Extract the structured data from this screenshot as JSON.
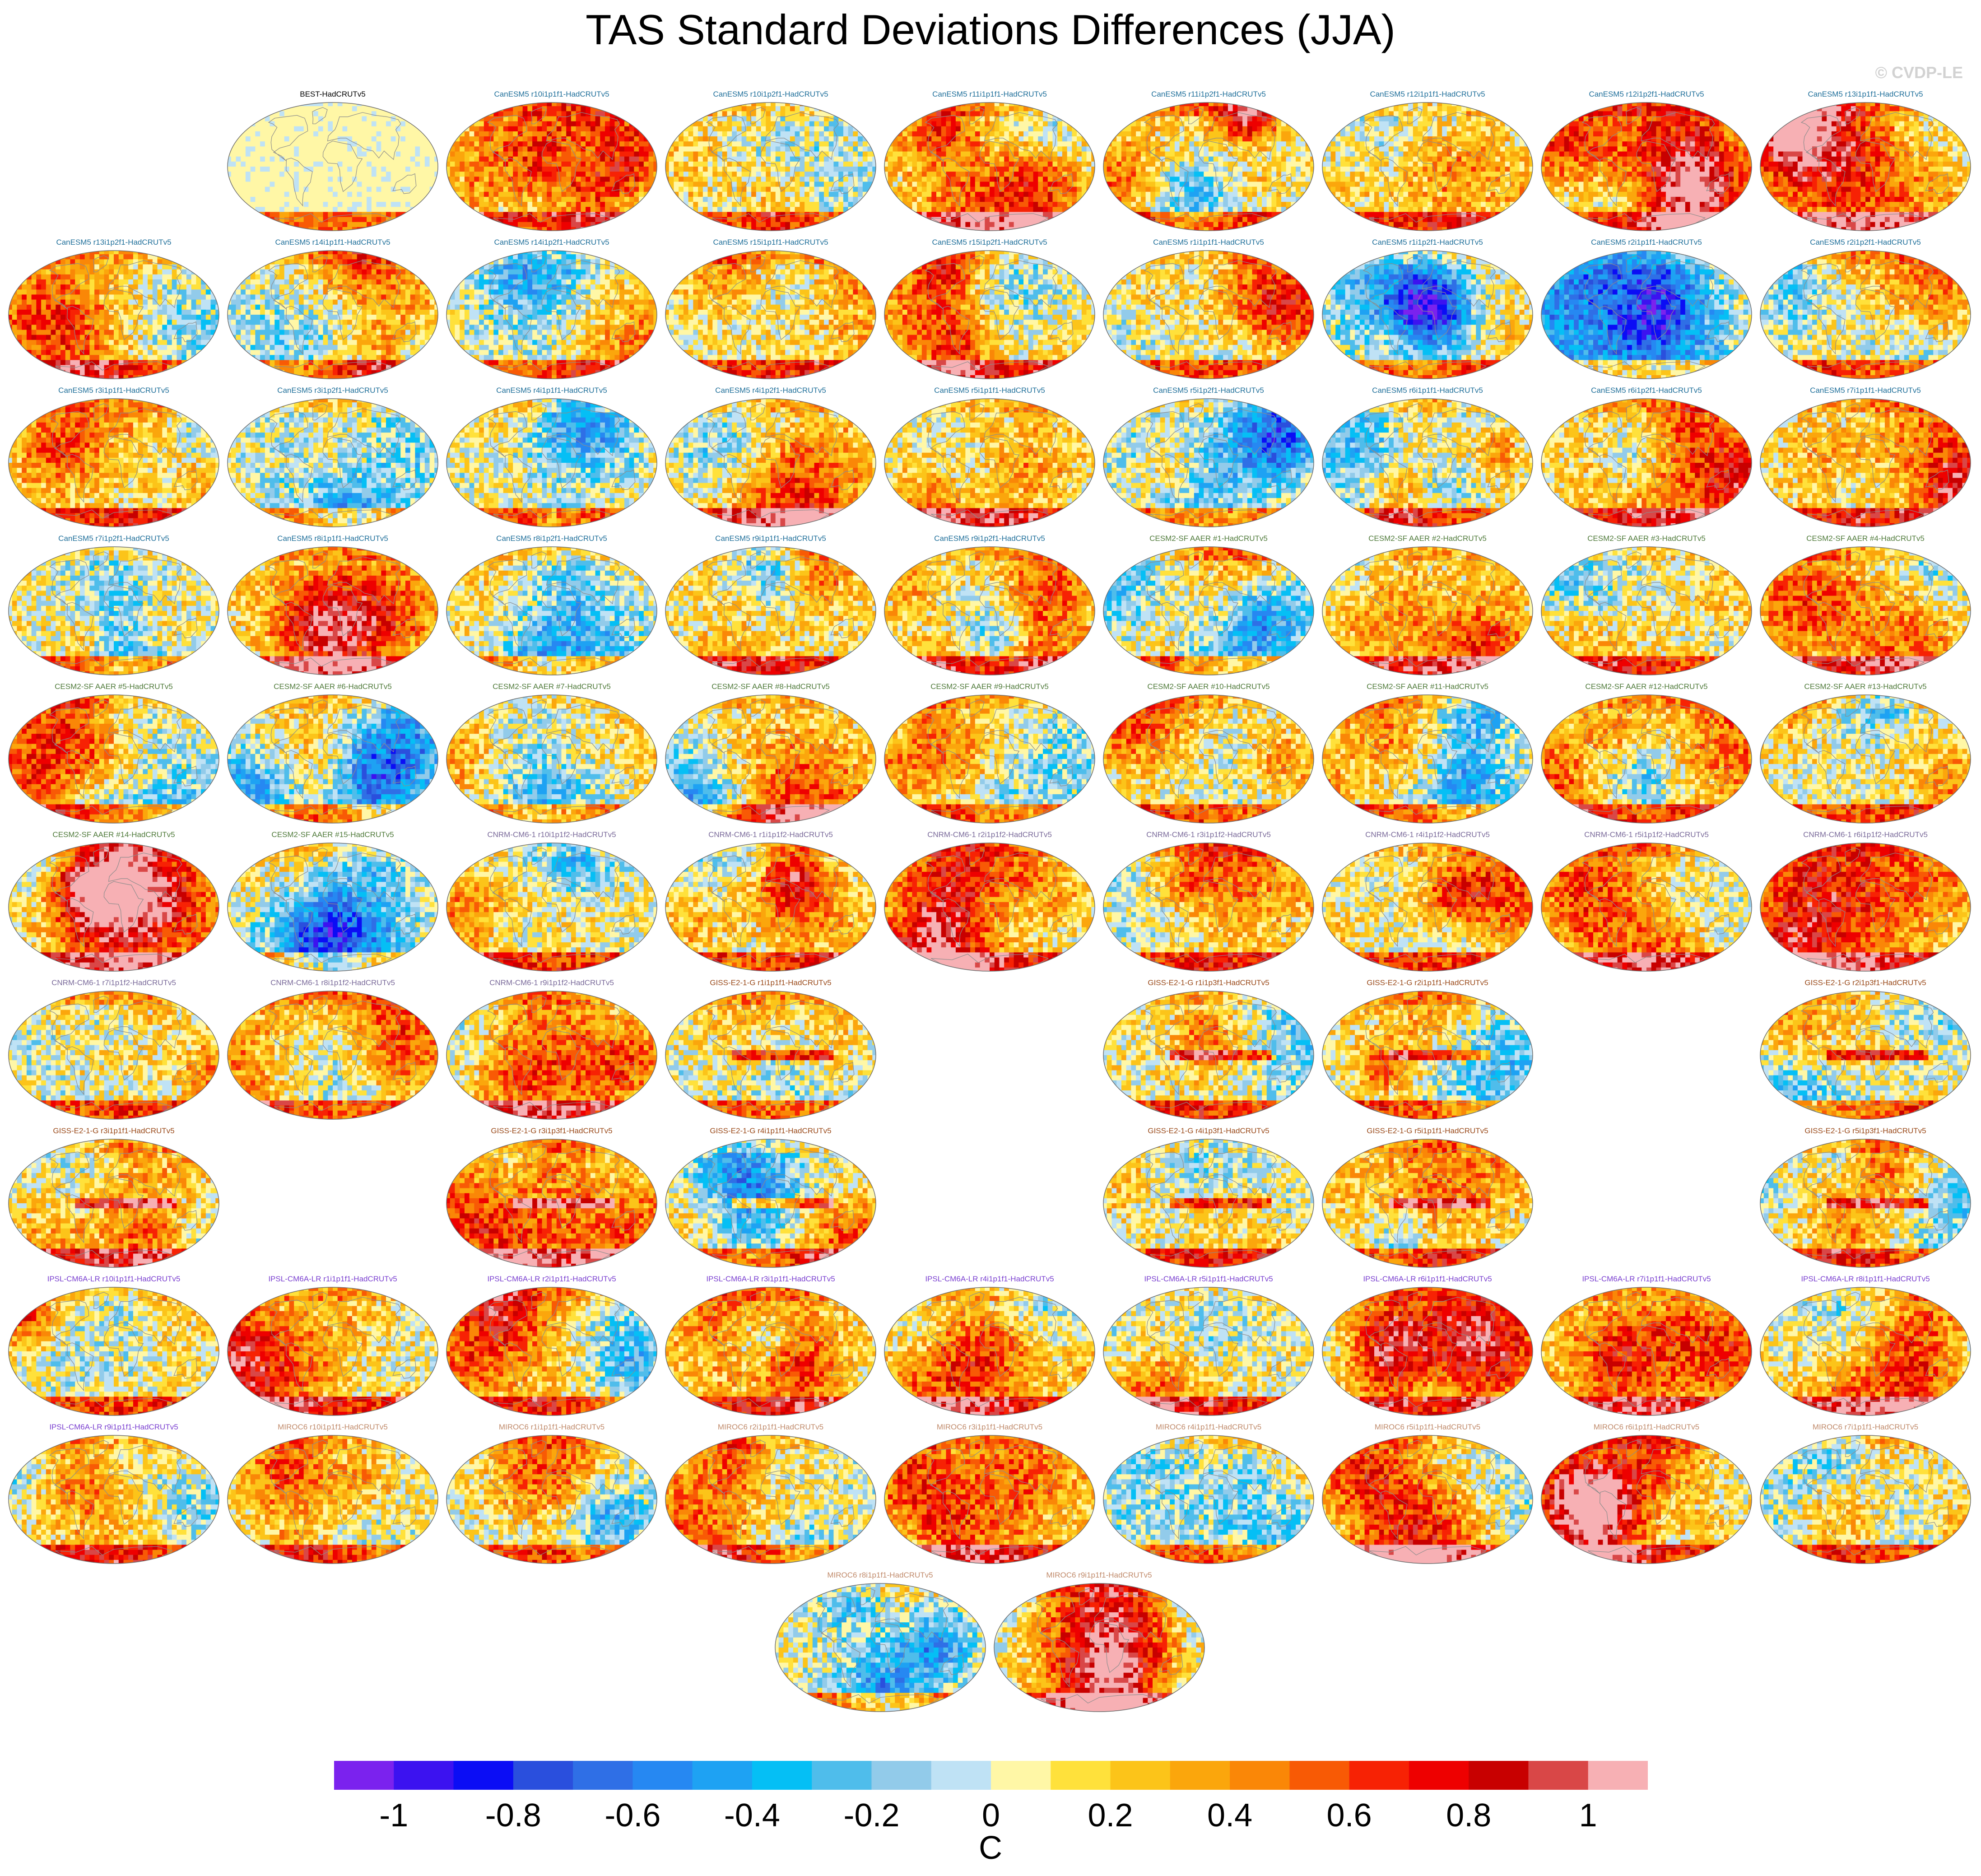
{
  "title": "TAS Standard Deviations Differences (JJA)",
  "copyright": "© CVDP-LE",
  "colors": {
    "land_outline": "#8c8c8c",
    "map_border": "#6e6e6e",
    "group_title_colors": {
      "obs": "#000000",
      "CanESM5": "#1f6f9a",
      "CESM2-SF AAER": "#4f7a3a",
      "CNRM-CM6-1": "#7a6a9a",
      "GISS-E2-1-G": "#9a4a1a",
      "IPSL-CM6A-LR": "#7a3fd0",
      "MIROC6": "#c08a6a"
    }
  },
  "chart_data": {
    "type": "heatmap",
    "projection": "robinson",
    "layout": {
      "columns": 9
    },
    "panels": [
      {
        "label": "BEST-HadCRUTv5",
        "group": "obs",
        "row": 0,
        "col": 1
      },
      {
        "label": "CanESM5 r10i1p1f1-HadCRUTv5",
        "group": "CanESM5",
        "row": 0,
        "col": 2
      },
      {
        "label": "CanESM5 r10i1p2f1-HadCRUTv5",
        "group": "CanESM5",
        "row": 0,
        "col": 3
      },
      {
        "label": "CanESM5 r11i1p1f1-HadCRUTv5",
        "group": "CanESM5",
        "row": 0,
        "col": 4
      },
      {
        "label": "CanESM5 r11i1p2f1-HadCRUTv5",
        "group": "CanESM5",
        "row": 0,
        "col": 5
      },
      {
        "label": "CanESM5 r12i1p1f1-HadCRUTv5",
        "group": "CanESM5",
        "row": 0,
        "col": 6
      },
      {
        "label": "CanESM5 r12i1p2f1-HadCRUTv5",
        "group": "CanESM5",
        "row": 0,
        "col": 7
      },
      {
        "label": "CanESM5 r13i1p1f1-HadCRUTv5",
        "group": "CanESM5",
        "row": 0,
        "col": 8
      },
      {
        "label": "CanESM5 r13i1p2f1-HadCRUTv5",
        "group": "CanESM5",
        "row": 1,
        "col": 0
      },
      {
        "label": "CanESM5 r14i1p1f1-HadCRUTv5",
        "group": "CanESM5",
        "row": 1,
        "col": 1
      },
      {
        "label": "CanESM5 r14i1p2f1-HadCRUTv5",
        "group": "CanESM5",
        "row": 1,
        "col": 2
      },
      {
        "label": "CanESM5 r15i1p1f1-HadCRUTv5",
        "group": "CanESM5",
        "row": 1,
        "col": 3
      },
      {
        "label": "CanESM5 r15i1p2f1-HadCRUTv5",
        "group": "CanESM5",
        "row": 1,
        "col": 4
      },
      {
        "label": "CanESM5 r1i1p1f1-HadCRUTv5",
        "group": "CanESM5",
        "row": 1,
        "col": 5
      },
      {
        "label": "CanESM5 r1i1p2f1-HadCRUTv5",
        "group": "CanESM5",
        "row": 1,
        "col": 6
      },
      {
        "label": "CanESM5 r2i1p1f1-HadCRUTv5",
        "group": "CanESM5",
        "row": 1,
        "col": 7
      },
      {
        "label": "CanESM5 r2i1p2f1-HadCRUTv5",
        "group": "CanESM5",
        "row": 1,
        "col": 8
      },
      {
        "label": "CanESM5 r3i1p1f1-HadCRUTv5",
        "group": "CanESM5",
        "row": 2,
        "col": 0
      },
      {
        "label": "CanESM5 r3i1p2f1-HadCRUTv5",
        "group": "CanESM5",
        "row": 2,
        "col": 1
      },
      {
        "label": "CanESM5 r4i1p1f1-HadCRUTv5",
        "group": "CanESM5",
        "row": 2,
        "col": 2
      },
      {
        "label": "CanESM5 r4i1p2f1-HadCRUTv5",
        "group": "CanESM5",
        "row": 2,
        "col": 3
      },
      {
        "label": "CanESM5 r5i1p1f1-HadCRUTv5",
        "group": "CanESM5",
        "row": 2,
        "col": 4
      },
      {
        "label": "CanESM5 r5i1p2f1-HadCRUTv5",
        "group": "CanESM5",
        "row": 2,
        "col": 5
      },
      {
        "label": "CanESM5 r6i1p1f1-HadCRUTv5",
        "group": "CanESM5",
        "row": 2,
        "col": 6
      },
      {
        "label": "CanESM5 r6i1p2f1-HadCRUTv5",
        "group": "CanESM5",
        "row": 2,
        "col": 7
      },
      {
        "label": "CanESM5 r7i1p1f1-HadCRUTv5",
        "group": "CanESM5",
        "row": 2,
        "col": 8
      },
      {
        "label": "CanESM5 r7i1p2f1-HadCRUTv5",
        "group": "CanESM5",
        "row": 3,
        "col": 0
      },
      {
        "label": "CanESM5 r8i1p1f1-HadCRUTv5",
        "group": "CanESM5",
        "row": 3,
        "col": 1
      },
      {
        "label": "CanESM5 r8i1p2f1-HadCRUTv5",
        "group": "CanESM5",
        "row": 3,
        "col": 2
      },
      {
        "label": "CanESM5 r9i1p1f1-HadCRUTv5",
        "group": "CanESM5",
        "row": 3,
        "col": 3
      },
      {
        "label": "CanESM5 r9i1p2f1-HadCRUTv5",
        "group": "CanESM5",
        "row": 3,
        "col": 4
      },
      {
        "label": "CESM2-SF AAER #1-HadCRUTv5",
        "group": "CESM2-SF AAER",
        "row": 3,
        "col": 5
      },
      {
        "label": "CESM2-SF AAER #2-HadCRUTv5",
        "group": "CESM2-SF AAER",
        "row": 3,
        "col": 6
      },
      {
        "label": "CESM2-SF AAER #3-HadCRUTv5",
        "group": "CESM2-SF AAER",
        "row": 3,
        "col": 7
      },
      {
        "label": "CESM2-SF AAER #4-HadCRUTv5",
        "group": "CESM2-SF AAER",
        "row": 3,
        "col": 8
      },
      {
        "label": "CESM2-SF AAER #5-HadCRUTv5",
        "group": "CESM2-SF AAER",
        "row": 4,
        "col": 0
      },
      {
        "label": "CESM2-SF AAER #6-HadCRUTv5",
        "group": "CESM2-SF AAER",
        "row": 4,
        "col": 1
      },
      {
        "label": "CESM2-SF AAER #7-HadCRUTv5",
        "group": "CESM2-SF AAER",
        "row": 4,
        "col": 2
      },
      {
        "label": "CESM2-SF AAER #8-HadCRUTv5",
        "group": "CESM2-SF AAER",
        "row": 4,
        "col": 3
      },
      {
        "label": "CESM2-SF AAER #9-HadCRUTv5",
        "group": "CESM2-SF AAER",
        "row": 4,
        "col": 4
      },
      {
        "label": "CESM2-SF AAER #10-HadCRUTv5",
        "group": "CESM2-SF AAER",
        "row": 4,
        "col": 5
      },
      {
        "label": "CESM2-SF AAER #11-HadCRUTv5",
        "group": "CESM2-SF AAER",
        "row": 4,
        "col": 6
      },
      {
        "label": "CESM2-SF AAER #12-HadCRUTv5",
        "group": "CESM2-SF AAER",
        "row": 4,
        "col": 7
      },
      {
        "label": "CESM2-SF AAER #13-HadCRUTv5",
        "group": "CESM2-SF AAER",
        "row": 4,
        "col": 8
      },
      {
        "label": "CESM2-SF AAER #14-HadCRUTv5",
        "group": "CESM2-SF AAER",
        "row": 5,
        "col": 0
      },
      {
        "label": "CESM2-SF AAER #15-HadCRUTv5",
        "group": "CESM2-SF AAER",
        "row": 5,
        "col": 1
      },
      {
        "label": "CNRM-CM6-1 r10i1p1f2-HadCRUTv5",
        "group": "CNRM-CM6-1",
        "row": 5,
        "col": 2
      },
      {
        "label": "CNRM-CM6-1 r1i1p1f2-HadCRUTv5",
        "group": "CNRM-CM6-1",
        "row": 5,
        "col": 3
      },
      {
        "label": "CNRM-CM6-1 r2i1p1f2-HadCRUTv5",
        "group": "CNRM-CM6-1",
        "row": 5,
        "col": 4
      },
      {
        "label": "CNRM-CM6-1 r3i1p1f2-HadCRUTv5",
        "group": "CNRM-CM6-1",
        "row": 5,
        "col": 5
      },
      {
        "label": "CNRM-CM6-1 r4i1p1f2-HadCRUTv5",
        "group": "CNRM-CM6-1",
        "row": 5,
        "col": 6
      },
      {
        "label": "CNRM-CM6-1 r5i1p1f2-HadCRUTv5",
        "group": "CNRM-CM6-1",
        "row": 5,
        "col": 7
      },
      {
        "label": "CNRM-CM6-1 r6i1p1f2-HadCRUTv5",
        "group": "CNRM-CM6-1",
        "row": 5,
        "col": 8
      },
      {
        "label": "CNRM-CM6-1 r7i1p1f2-HadCRUTv5",
        "group": "CNRM-CM6-1",
        "row": 6,
        "col": 0
      },
      {
        "label": "CNRM-CM6-1 r8i1p1f2-HadCRUTv5",
        "group": "CNRM-CM6-1",
        "row": 6,
        "col": 1
      },
      {
        "label": "CNRM-CM6-1 r9i1p1f2-HadCRUTv5",
        "group": "CNRM-CM6-1",
        "row": 6,
        "col": 2
      },
      {
        "label": "GISS-E2-1-G r1i1p1f1-HadCRUTv5",
        "group": "GISS-E2-1-G",
        "row": 6,
        "col": 3
      },
      {
        "label": "GISS-E2-1-G r1i1p3f1-HadCRUTv5",
        "group": "GISS-E2-1-G",
        "row": 6,
        "col": 5
      },
      {
        "label": "GISS-E2-1-G r2i1p1f1-HadCRUTv5",
        "group": "GISS-E2-1-G",
        "row": 6,
        "col": 6
      },
      {
        "label": "GISS-E2-1-G r2i1p3f1-HadCRUTv5",
        "group": "GISS-E2-1-G",
        "row": 6,
        "col": 8
      },
      {
        "label": "GISS-E2-1-G r3i1p1f1-HadCRUTv5",
        "group": "GISS-E2-1-G",
        "row": 7,
        "col": 0
      },
      {
        "label": "GISS-E2-1-G r3i1p3f1-HadCRUTv5",
        "group": "GISS-E2-1-G",
        "row": 7,
        "col": 2
      },
      {
        "label": "GISS-E2-1-G r4i1p1f1-HadCRUTv5",
        "group": "GISS-E2-1-G",
        "row": 7,
        "col": 3
      },
      {
        "label": "GISS-E2-1-G r4i1p3f1-HadCRUTv5",
        "group": "GISS-E2-1-G",
        "row": 7,
        "col": 5
      },
      {
        "label": "GISS-E2-1-G r5i1p1f1-HadCRUTv5",
        "group": "GISS-E2-1-G",
        "row": 7,
        "col": 6
      },
      {
        "label": "GISS-E2-1-G r5i1p3f1-HadCRUTv5",
        "group": "GISS-E2-1-G",
        "row": 7,
        "col": 8
      },
      {
        "label": "IPSL-CM6A-LR r10i1p1f1-HadCRUTv5",
        "group": "IPSL-CM6A-LR",
        "row": 8,
        "col": 0
      },
      {
        "label": "IPSL-CM6A-LR r1i1p1f1-HadCRUTv5",
        "group": "IPSL-CM6A-LR",
        "row": 8,
        "col": 1
      },
      {
        "label": "IPSL-CM6A-LR r2i1p1f1-HadCRUTv5",
        "group": "IPSL-CM6A-LR",
        "row": 8,
        "col": 2
      },
      {
        "label": "IPSL-CM6A-LR r3i1p1f1-HadCRUTv5",
        "group": "IPSL-CM6A-LR",
        "row": 8,
        "col": 3
      },
      {
        "label": "IPSL-CM6A-LR r4i1p1f1-HadCRUTv5",
        "group": "IPSL-CM6A-LR",
        "row": 8,
        "col": 4
      },
      {
        "label": "IPSL-CM6A-LR r5i1p1f1-HadCRUTv5",
        "group": "IPSL-CM6A-LR",
        "row": 8,
        "col": 5
      },
      {
        "label": "IPSL-CM6A-LR r6i1p1f1-HadCRUTv5",
        "group": "IPSL-CM6A-LR",
        "row": 8,
        "col": 6
      },
      {
        "label": "IPSL-CM6A-LR r7i1p1f1-HadCRUTv5",
        "group": "IPSL-CM6A-LR",
        "row": 8,
        "col": 7
      },
      {
        "label": "IPSL-CM6A-LR r8i1p1f1-HadCRUTv5",
        "group": "IPSL-CM6A-LR",
        "row": 8,
        "col": 8
      },
      {
        "label": "IPSL-CM6A-LR r9i1p1f1-HadCRUTv5",
        "group": "IPSL-CM6A-LR",
        "row": 9,
        "col": 0
      },
      {
        "label": "MIROC6 r10i1p1f1-HadCRUTv5",
        "group": "MIROC6",
        "row": 9,
        "col": 1
      },
      {
        "label": "MIROC6 r1i1p1f1-HadCRUTv5",
        "group": "MIROC6",
        "row": 9,
        "col": 2
      },
      {
        "label": "MIROC6 r2i1p1f1-HadCRUTv5",
        "group": "MIROC6",
        "row": 9,
        "col": 3
      },
      {
        "label": "MIROC6 r3i1p1f1-HadCRUTv5",
        "group": "MIROC6",
        "row": 9,
        "col": 4
      },
      {
        "label": "MIROC6 r4i1p1f1-HadCRUTv5",
        "group": "MIROC6",
        "row": 9,
        "col": 5
      },
      {
        "label": "MIROC6 r5i1p1f1-HadCRUTv5",
        "group": "MIROC6",
        "row": 9,
        "col": 6
      },
      {
        "label": "MIROC6 r6i1p1f1-HadCRUTv5",
        "group": "MIROC6",
        "row": 9,
        "col": 7
      },
      {
        "label": "MIROC6 r7i1p1f1-HadCRUTv5",
        "group": "MIROC6",
        "row": 9,
        "col": 8
      },
      {
        "label": "MIROC6 r8i1p1f1-HadCRUTv5",
        "group": "MIROC6",
        "row": 10,
        "col": 3.5
      },
      {
        "label": "MIROC6 r9i1p1f1-HadCRUTv5",
        "group": "MIROC6",
        "row": 10,
        "col": 4.5
      }
    ],
    "colorbar": {
      "unit": "C",
      "range": [
        -1.1,
        1.1
      ],
      "tick_values": [
        -1,
        -0.8,
        -0.6,
        -0.4,
        -0.2,
        0,
        0.2,
        0.4,
        0.6,
        0.8,
        1
      ],
      "tick_labels": [
        "-1",
        "-0.8",
        "-0.6",
        "-0.4",
        "-0.2",
        "0",
        "0.2",
        "0.4",
        "0.6",
        "0.8",
        "1"
      ],
      "colors": [
        "#7b22ee",
        "#3c12f0",
        "#0b0df5",
        "#2a4fdd",
        "#2f6fe6",
        "#2688f2",
        "#1ea2f3",
        "#05bff5",
        "#4fbdeb",
        "#92cbea",
        "#bfe2f5",
        "#fff7a6",
        "#ffe13b",
        "#fcc419",
        "#fba60c",
        "#fa8707",
        "#f85a05",
        "#f72204",
        "#ee0000",
        "#c80000",
        "#d94747",
        "#f7b0b4"
      ]
    }
  }
}
